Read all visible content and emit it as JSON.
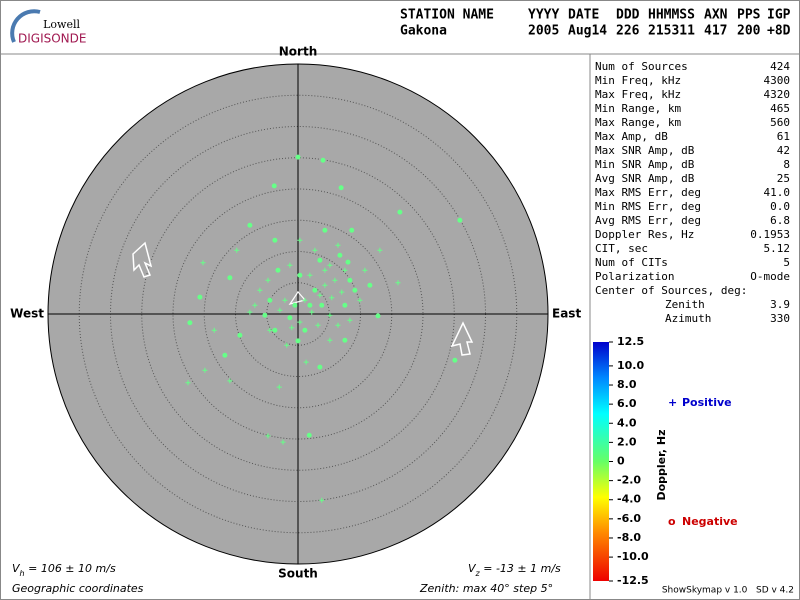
{
  "logo": {
    "top": "Lowell",
    "bottom": "DIGISONDE"
  },
  "header": {
    "columns": [
      {
        "label": "STATION NAME",
        "value": "Gakona"
      },
      {
        "label": "YYYY",
        "value": "2005"
      },
      {
        "label": "DATE",
        "value": "Aug14"
      },
      {
        "label": "DDD",
        "value": "226"
      },
      {
        "label": "HHMMSS",
        "value": "215311"
      },
      {
        "label": "AXN",
        "value": "417"
      },
      {
        "label": "PPS",
        "value": "200"
      },
      {
        "label": "IGP",
        "value": "+8D"
      }
    ]
  },
  "stats": [
    [
      "Num of Sources",
      "424"
    ],
    [
      "Min Freq, kHz",
      "4300"
    ],
    [
      "Max Freq, kHz",
      "4320"
    ],
    [
      "Min Range, km",
      "465"
    ],
    [
      "Max Range, km",
      "560"
    ],
    [
      "Max Amp, dB",
      "61"
    ],
    [
      "Max SNR Amp, dB",
      "42"
    ],
    [
      "Min SNR Amp, dB",
      "8"
    ],
    [
      "Avg SNR Amp, dB",
      "25"
    ],
    [
      "Max RMS Err, deg",
      "41.0"
    ],
    [
      "Min RMS Err, deg",
      "0.0"
    ],
    [
      "Avg RMS Err, deg",
      "6.8"
    ],
    [
      "Doppler Res, Hz",
      "0.1953"
    ],
    [
      "CIT, sec",
      "5.12"
    ],
    [
      "Num of CITs",
      "5"
    ],
    [
      "Polarization",
      "O-mode"
    ]
  ],
  "center": {
    "title": "Center of Sources, deg:",
    "rows": [
      [
        "Zenith",
        "3.9"
      ],
      [
        "Azimuth",
        "330"
      ]
    ]
  },
  "directions": {
    "north": "North",
    "south": "South",
    "east": "East",
    "west": "West"
  },
  "zenith_max": 40,
  "zenith_step": 5,
  "sources": {
    "color": "#66ff88",
    "positive": {
      "east": [
        -9.8,
        -15.2,
        13.1,
        16.0,
        -13.4,
        -14.9,
        -17.6,
        -10.9,
        -3.0,
        1.3,
        -4.8,
        -2.4,
        3.8,
        -4.5,
        6.4,
        0.3,
        2.7,
        5.1,
        7.5,
        5.9,
        4.3,
        1.9,
        1.1,
        -2.1,
        -2.9,
        0.3,
        2.2,
        5.4,
        7.0,
        9.9,
        5.1,
        3.2,
        -1.0,
        -6.1,
        -6.9,
        -7.7,
        -4.8,
        -1.3,
        4.3,
        6.4,
        10.7,
        3.5,
        5.1,
        8.3,
        -1.8
      ],
      "north": [
        10.2,
        8.2,
        10.2,
        5.0,
        -2.6,
        -9.0,
        -11.0,
        -10.7,
        -11.7,
        -7.7,
        -19.5,
        -20.5,
        -29.8,
        -2.6,
        -1.8,
        11.8,
        10.2,
        7.8,
        7.0,
        5.4,
        4.6,
        6.2,
        2.2,
        2.2,
        0.6,
        -1.3,
        0.3,
        2.6,
        3.5,
        2.2,
        -0.2,
        -1.8,
        -2.2,
        3.8,
        1.4,
        0.3,
        5.4,
        7.8,
        7.0,
        11.0,
        7.0,
        3.0,
        -4.2,
        -1.0,
        -5.0
      ]
    },
    "negative": {
      "east": [
        0,
        4.0,
        -3.8,
        6.9,
        16.3,
        25.9,
        -7.7,
        -3.7,
        4.3,
        8.6,
        -10.9,
        -15.7,
        -17.3,
        -9.3,
        12.8,
        25.1,
        -11.7,
        3.5,
        1.8,
        0,
        3.5,
        6.7,
        8.3,
        2.7,
        -0.5,
        -1.3,
        3.8,
        9.1,
        7.5,
        1.1,
        -4.5,
        -5.3,
        -3.2,
        0.3,
        8.0,
        11.5,
        1.9,
        7.5,
        -3.7
      ],
      "north": [
        25.1,
        24.6,
        20.5,
        20.2,
        16.3,
        15.0,
        14.2,
        11.8,
        13.4,
        13.4,
        5.8,
        2.7,
        -1.4,
        -3.4,
        -0.3,
        -7.4,
        -6.6,
        -8.5,
        -19.4,
        -4.3,
        8.6,
        9.4,
        5.4,
        3.8,
        1.4,
        -0.6,
        1.4,
        3.8,
        1.4,
        -2.6,
        2.2,
        -0.2,
        7.0,
        6.2,
        8.3,
        4.6,
        1.4,
        -4.2,
        -2.6
      ]
    }
  },
  "colorbar": {
    "title": "Doppler, Hz",
    "range": [
      -12.5,
      12.5
    ],
    "ticks": [
      12.5,
      {
        "value": 10,
        "label": "10.0"
      },
      {
        "value": 8,
        "label": "8.0"
      },
      {
        "value": 6,
        "label": "6.0"
      },
      {
        "value": 4,
        "label": "4.0"
      },
      {
        "value": 2,
        "label": "2.0"
      },
      0,
      {
        "value": -2,
        "label": "-2.0"
      },
      {
        "value": -4,
        "label": "-4.0"
      },
      {
        "value": -6,
        "label": "-6.0"
      },
      {
        "value": -8,
        "label": "-8.0"
      },
      {
        "value": -10,
        "label": "-10.0"
      },
      -12.5
    ]
  },
  "legend": {
    "positive": {
      "symbol": "+",
      "text": "Positive",
      "color": "#0000cc"
    },
    "negative": {
      "symbol": "o",
      "text": "Negative",
      "color": "#cc0000"
    }
  },
  "footer": {
    "vh": {
      "symbol": "V",
      "subscript": "h",
      "text": " = 106 ± 10 m/s"
    },
    "vz": {
      "symbol": "V",
      "subscript": "z",
      "text": " = -13 ± 1 m/s"
    },
    "coords": "Geographic coordinates",
    "zenith": "Zenith: max 40°  step 5°",
    "version": "ShowSkymap v 1.0   SD v 4.2"
  }
}
